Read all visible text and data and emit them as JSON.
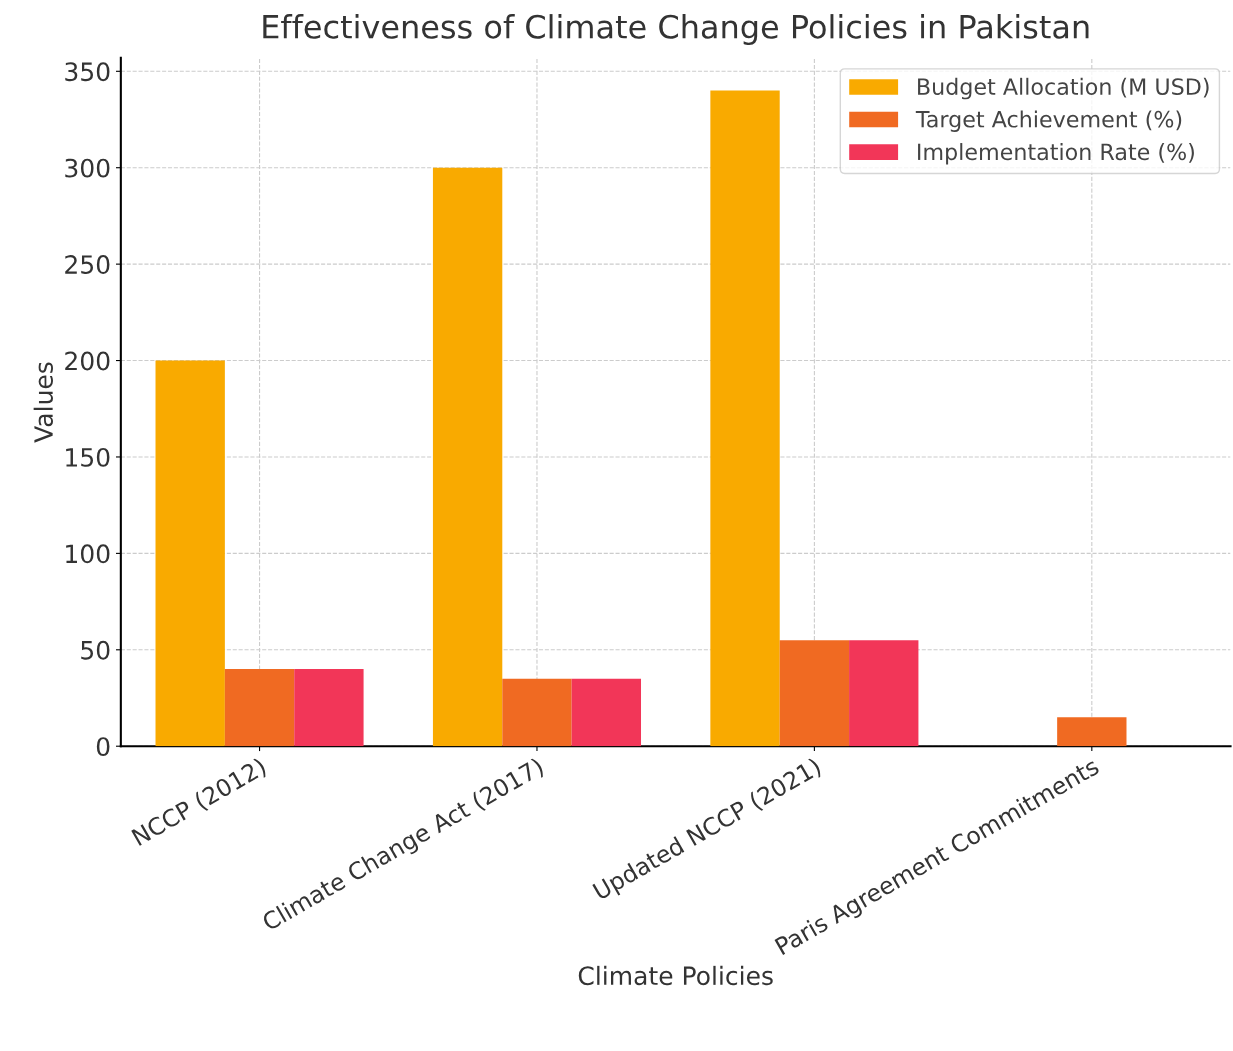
{
  "chart_data": {
    "type": "bar",
    "title": "Effectiveness of Climate Change Policies in Pakistan",
    "xlabel": "Climate Policies",
    "ylabel": "Values",
    "categories": [
      "NCCP (2012)",
      "Climate Change Act (2017)",
      "Updated NCCP (2021)",
      "Paris Agreement Commitments"
    ],
    "series": [
      {
        "name": "Budget Allocation (M USD)",
        "color": "#f9aa00",
        "values": [
          200,
          300,
          340,
          null
        ]
      },
      {
        "name": "Target Achievement (%)",
        "color": "#f06a22",
        "values": [
          40,
          35,
          55,
          15
        ]
      },
      {
        "name": "Implementation Rate (%)",
        "color": "#f23658",
        "values": [
          40,
          35,
          55,
          null
        ]
      }
    ],
    "ylim": [
      0,
      357
    ],
    "yticks": [
      0,
      50,
      100,
      150,
      200,
      250,
      300,
      350
    ],
    "grid": true,
    "legend": "top right"
  }
}
